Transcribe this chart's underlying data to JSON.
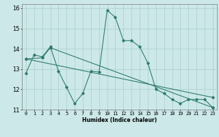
{
  "title": "",
  "xlabel": "Humidex (Indice chaleur)",
  "bg_color": "#cce8e8",
  "grid_color": "#aacccc",
  "line_color": "#2e7a6e",
  "xlim": [
    -0.5,
    23.5
  ],
  "ylim": [
    11,
    16.2
  ],
  "yticks": [
    11,
    12,
    13,
    14,
    15,
    16
  ],
  "xticks": [
    0,
    1,
    2,
    3,
    4,
    5,
    6,
    7,
    8,
    9,
    10,
    11,
    12,
    13,
    14,
    15,
    16,
    17,
    18,
    19,
    20,
    21,
    22,
    23
  ],
  "series1_x": [
    0,
    1,
    2,
    3,
    4,
    5,
    6,
    7,
    8,
    9,
    10,
    11,
    12,
    13,
    14,
    15,
    16,
    17,
    18,
    19,
    20,
    21,
    22,
    23
  ],
  "series1_y": [
    12.8,
    13.7,
    13.6,
    14.1,
    12.9,
    12.1,
    11.3,
    11.8,
    12.9,
    12.85,
    15.9,
    15.55,
    14.4,
    14.4,
    14.1,
    13.3,
    12.0,
    11.8,
    11.5,
    11.3,
    11.5,
    11.5,
    11.5,
    11.1
  ],
  "series2_x": [
    0,
    2,
    3,
    23
  ],
  "series2_y": [
    13.5,
    13.55,
    14.05,
    11.1
  ],
  "series3_x": [
    0,
    23
  ],
  "series3_y": [
    13.5,
    11.6
  ],
  "xlabel_fontsize": 5.5,
  "ylabel_fontsize": 6,
  "tick_fontsize": 5
}
